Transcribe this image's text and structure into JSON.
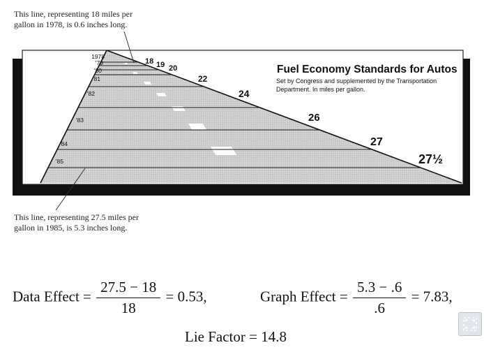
{
  "annotations": {
    "top": "This line, representing 18 miles per gallon in 1978, is 0.6 inches long.",
    "bottom": "This line, representing 27.5 miles per gallon in 1985, is 5.3 inches long."
  },
  "chart": {
    "title": "Fuel Economy Standards for Autos",
    "subtitle": "Set by Congress and supplemented by the Transportation Department. In miles per gallon.",
    "year_labels": [
      "1978",
      "'79",
      "'80",
      "'81",
      "'82",
      "'83",
      "'84",
      "'85"
    ],
    "value_labels": [
      "18",
      "19",
      "20",
      "22",
      "24",
      "26",
      "27",
      "27½"
    ]
  },
  "formulas": {
    "data_effect": {
      "label": "Data Effect =",
      "numerator": "27.5 − 18",
      "denominator": "18",
      "result": "= 0.53,"
    },
    "graph_effect": {
      "label": "Graph Effect =",
      "numerator": "5.3 − .6",
      "denominator": ".6",
      "result": "= 7.83,"
    },
    "lie_factor": "Lie Factor = 14.8"
  },
  "colors": {
    "panel": "#ffffff",
    "shadow": "#111111",
    "road": "#c9c9c9",
    "dash": "#ffffff"
  }
}
